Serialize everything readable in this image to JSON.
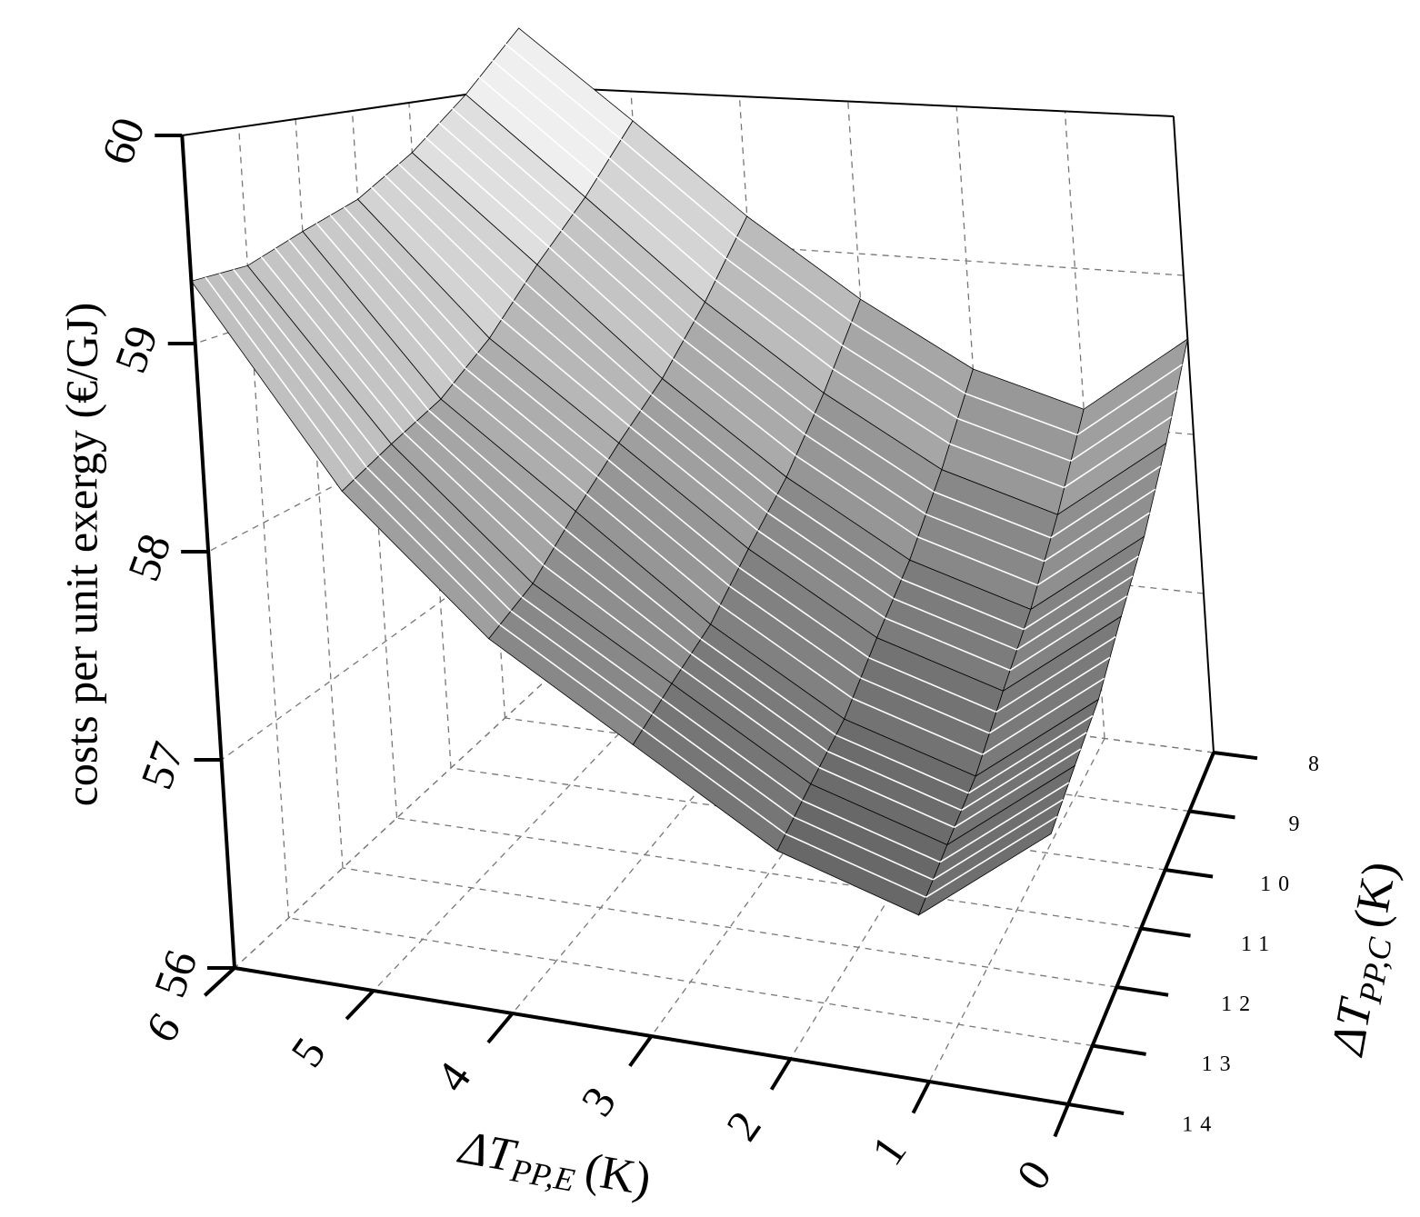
{
  "chart_data": {
    "type": "surface",
    "zlabel": "costs per unit exergy (€/GJ)",
    "xlabel": {
      "symbol": "ΔT",
      "subscript": "PP,E",
      "unit": "(K)"
    },
    "ylabel": {
      "symbol": "ΔT",
      "subscript": "PP,C",
      "unit": "(K)"
    },
    "x": [
      0,
      1,
      2,
      3,
      4,
      5,
      6
    ],
    "y": [
      8,
      9,
      10,
      11,
      12,
      13,
      14
    ],
    "z": [
      [
        58.6,
        58.1,
        58.3,
        58.7,
        59.2,
        59.8,
        60.4
      ],
      [
        58.2,
        57.7,
        57.9,
        58.3,
        58.8,
        59.4,
        60.0
      ],
      [
        57.9,
        57.4,
        57.6,
        58.0,
        58.5,
        59.1,
        59.7
      ],
      [
        57.7,
        57.2,
        57.4,
        57.8,
        58.3,
        58.8,
        59.5
      ],
      [
        57.5,
        57.0,
        57.2,
        57.6,
        58.1,
        58.6,
        59.4
      ],
      [
        57.4,
        56.9,
        57.1,
        57.5,
        57.9,
        58.5,
        59.3
      ],
      [
        57.3,
        56.8,
        57.0,
        57.4,
        57.8,
        58.4,
        59.3
      ]
    ],
    "xlim": [
      0,
      6
    ],
    "ylim": [
      8,
      14
    ],
    "zlim": [
      56,
      60
    ],
    "xticks": [
      0,
      1,
      2,
      3,
      4,
      5,
      6
    ],
    "yticks": [
      8,
      9,
      10,
      11,
      12,
      13,
      14
    ],
    "zticks": [
      56,
      57,
      58,
      59,
      60
    ],
    "grid": true,
    "colormap": [
      "#3c3c3c",
      "#f4f4f4"
    ]
  }
}
